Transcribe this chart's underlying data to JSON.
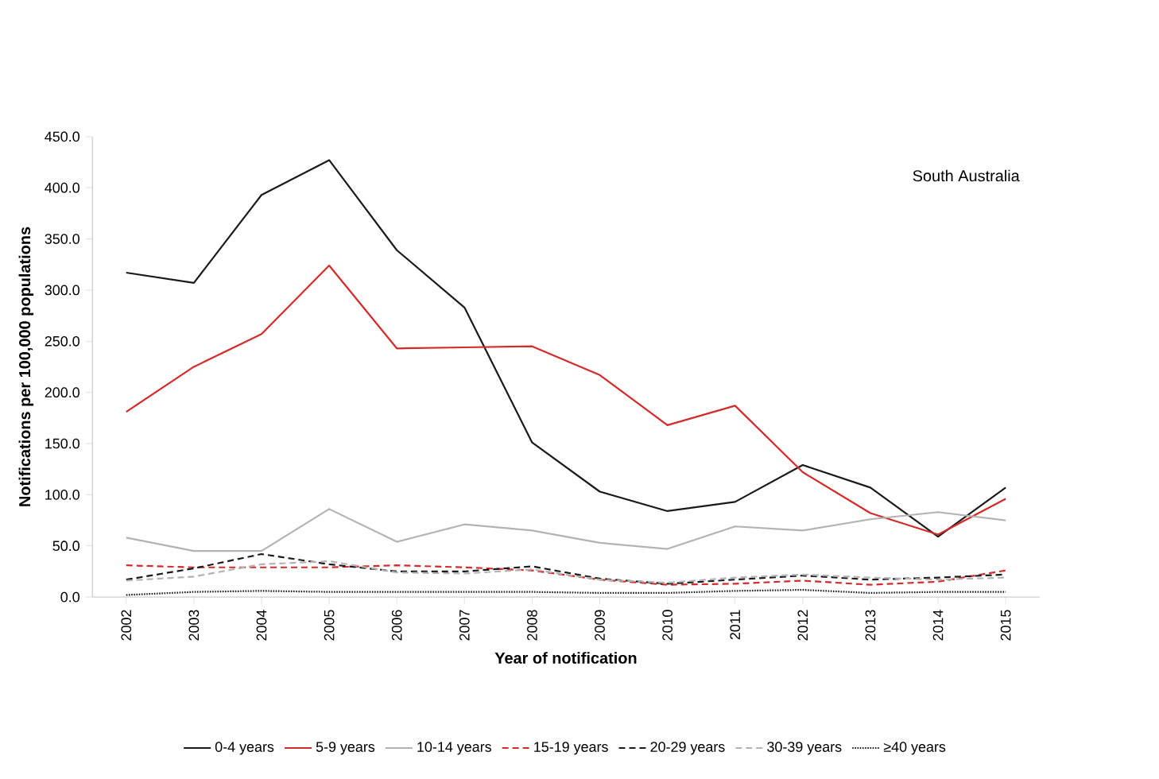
{
  "chart_data": {
    "type": "line",
    "xlabel": "Year of notification",
    "ylabel": "Notifications per 100,000 populations",
    "categories": [
      "2002",
      "2003",
      "2004",
      "2005",
      "2006",
      "2007",
      "2008",
      "2009",
      "2010",
      "2011",
      "2012",
      "2013",
      "2014",
      "2015"
    ],
    "ylim": [
      0,
      450
    ],
    "yticks": [
      {
        "value": 0,
        "label": "0.0"
      },
      {
        "value": 50,
        "label": "50.0"
      },
      {
        "value": 100,
        "label": "100.0"
      },
      {
        "value": 150,
        "label": "150.0"
      },
      {
        "value": 200,
        "label": "200.0"
      },
      {
        "value": 250,
        "label": "250.0"
      },
      {
        "value": 300,
        "label": "300.0"
      },
      {
        "value": 350,
        "label": "350.0"
      },
      {
        "value": 400,
        "label": "400.0"
      },
      {
        "value": 450,
        "label": "450.0"
      }
    ],
    "grid": false,
    "legend": "bottom",
    "marker": "none",
    "annotations": [
      "South Australia"
    ],
    "series": [
      {
        "name": "0-4 years",
        "color": "#1a1a1a",
        "line_style": "solid",
        "values": [
          317,
          307,
          393,
          427,
          339,
          283,
          151,
          103,
          84,
          93,
          129,
          107,
          59,
          107
        ]
      },
      {
        "name": "5-9 years",
        "color": "#d42a2a",
        "line_style": "solid",
        "values": [
          181,
          225,
          257,
          324,
          243,
          244,
          245,
          217,
          168,
          187,
          122,
          82,
          61,
          96
        ]
      },
      {
        "name": "10-14 years",
        "color": "#b3b3b3",
        "line_style": "solid",
        "values": [
          58,
          45,
          45,
          86,
          54,
          71,
          65,
          53,
          47,
          69,
          65,
          76,
          83,
          75
        ]
      },
      {
        "name": "15-19 years",
        "color": "#d42a2a",
        "line_style": "dashed",
        "values": [
          31,
          29,
          29,
          29,
          31,
          29,
          26,
          17,
          12,
          13,
          16,
          12,
          15,
          26
        ]
      },
      {
        "name": "20-29 years",
        "color": "#1a1a1a",
        "line_style": "dashed",
        "values": [
          17,
          28,
          42,
          32,
          25,
          25,
          30,
          18,
          13,
          17,
          21,
          17,
          19,
          22
        ]
      },
      {
        "name": "30-39 years",
        "color": "#b3b3b3",
        "line_style": "dashed",
        "values": [
          16,
          20,
          32,
          35,
          24,
          23,
          27,
          17,
          14,
          19,
          22,
          19,
          17,
          19
        ]
      },
      {
        "name": "≥40 years",
        "color": "#1a1a1a",
        "line_style": "dotted",
        "values": [
          2,
          5,
          6,
          5,
          5,
          5,
          5,
          4,
          4,
          6,
          7,
          4,
          5,
          5
        ]
      }
    ]
  }
}
